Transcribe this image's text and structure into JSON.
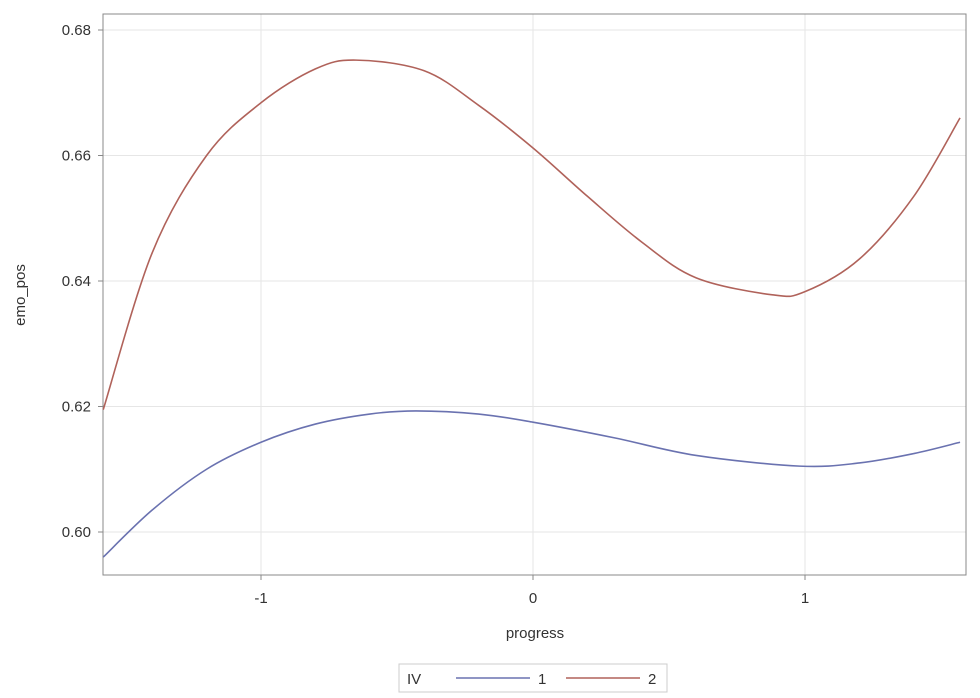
{
  "chart_data": {
    "type": "line",
    "title": "",
    "xlabel": "progress",
    "ylabel": "emo_pos",
    "xlim": [
      -1.58,
      1.59
    ],
    "ylim": [
      0.5935,
      0.6825
    ],
    "xticks": [
      -1,
      0,
      1
    ],
    "xtick_labels": [
      "-1",
      "0",
      "1"
    ],
    "yticks": [
      0.6,
      0.62,
      0.64,
      0.66,
      0.68
    ],
    "ytick_labels": [
      "0.60",
      "0.62",
      "0.64",
      "0.66",
      "0.68"
    ],
    "grid": true,
    "legend": {
      "title": "IV",
      "placement": "bottom-center"
    },
    "series": [
      {
        "name": "1",
        "color": "#6a72b0",
        "x": [
          -1.58,
          -1.4,
          -1.2,
          -1.0,
          -0.8,
          -0.6,
          -0.43,
          -0.2,
          0,
          0.3,
          0.6,
          0.98,
          1.2,
          1.4,
          1.57
        ],
        "y": [
          0.596,
          0.6035,
          0.61,
          0.6143,
          0.6172,
          0.6188,
          0.6193,
          0.6188,
          0.6175,
          0.615,
          0.6122,
          0.6105,
          0.611,
          0.6125,
          0.6143
        ]
      },
      {
        "name": "2",
        "color": "#b0625a",
        "x": [
          -1.58,
          -1.4,
          -1.2,
          -1.0,
          -0.8,
          -0.65,
          -0.4,
          -0.2,
          0,
          0.2,
          0.4,
          0.6,
          0.88,
          1.0,
          1.2,
          1.4,
          1.57
        ],
        "y": [
          0.6195,
          0.6445,
          0.66,
          0.6684,
          0.6738,
          0.6752,
          0.6735,
          0.668,
          0.6612,
          0.6535,
          0.6462,
          0.6405,
          0.6378,
          0.6383,
          0.6435,
          0.6535,
          0.666
        ]
      }
    ]
  }
}
